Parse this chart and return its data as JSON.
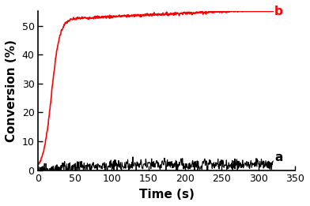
{
  "title": "",
  "xlabel": "Time (s)",
  "ylabel": "Conversion (%)",
  "xlim": [
    0,
    350
  ],
  "ylim": [
    0,
    55
  ],
  "yticks": [
    0,
    10,
    20,
    30,
    40,
    50
  ],
  "xticks": [
    0,
    50,
    100,
    150,
    200,
    250,
    300,
    350
  ],
  "curve_b_color": "#ff0000",
  "curve_a_color": "#000000",
  "label_a": "a",
  "label_b": "b",
  "background_color": "#ffffff",
  "curve_b_asymptote": 52.0,
  "curve_b_knee": 18,
  "curve_b_rate": 0.18,
  "curve_b_slow_rise": 0.012,
  "curve_a_mean": 2.0,
  "curve_a_noise": 1.4,
  "curve_a_rise_tau": 60,
  "t_end": 320,
  "dt": 0.5,
  "xlabel_fontsize": 11,
  "ylabel_fontsize": 11,
  "label_fontsize": 11,
  "tick_fontsize": 9,
  "linewidth_b": 1.2,
  "linewidth_a": 0.8
}
